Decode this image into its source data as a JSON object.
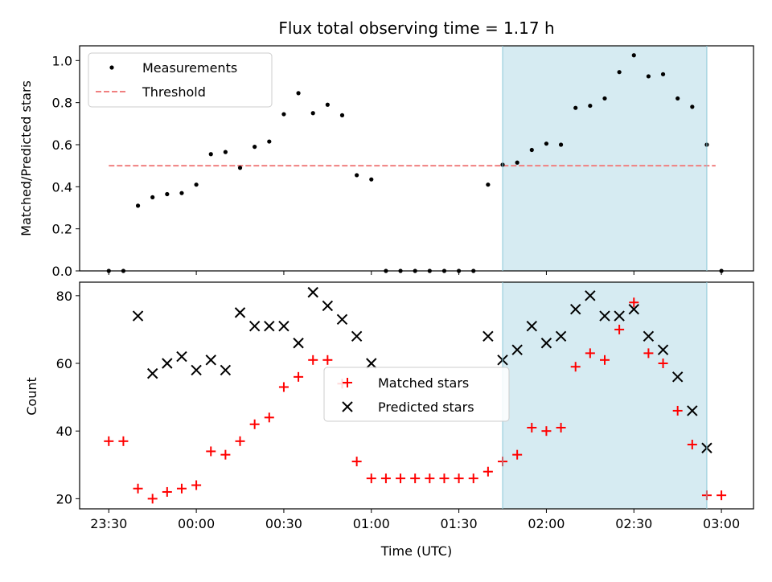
{
  "chart_data": {
    "type": "scatter",
    "title": "Flux total observing time = 1.17 h",
    "xlabel": "Time (UTC)",
    "x_tick_labels": [
      "23:30",
      "00:00",
      "00:30",
      "01:00",
      "01:30",
      "02:00",
      "02:30",
      "03:00"
    ],
    "x_tick_minutes": [
      -30,
      0,
      30,
      60,
      90,
      120,
      150,
      180
    ],
    "xlim_minutes": [
      -40,
      191
    ],
    "highlight_span_minutes": [
      105,
      175
    ],
    "highlight_color": "#add8e6",
    "panels": [
      {
        "name": "ratio",
        "ylabel": "Matched/Predicted stars",
        "ylim": [
          0,
          1.07
        ],
        "y_ticks": [
          0.0,
          0.2,
          0.4,
          0.6,
          0.8,
          1.0
        ],
        "y_tick_labels": [
          "0.0",
          "0.2",
          "0.4",
          "0.6",
          "0.8",
          "1.0"
        ],
        "legend_position": "upper-left",
        "series": [
          {
            "name": "Measurements",
            "marker": "dot",
            "color": "#000000",
            "x": [
              -30,
              -25,
              -20,
              -15,
              -10,
              -5,
              0,
              5,
              10,
              15,
              20,
              25,
              30,
              35,
              40,
              45,
              50,
              55,
              60,
              65,
              70,
              75,
              80,
              85,
              90,
              95,
              100,
              105,
              110,
              115,
              120,
              125,
              130,
              135,
              140,
              145,
              150,
              155,
              160,
              165,
              170,
              175,
              180
            ],
            "y": [
              0,
              0,
              0.31,
              0.35,
              0.365,
              0.37,
              0.41,
              0.555,
              0.565,
              0.49,
              0.59,
              0.615,
              0.745,
              0.845,
              0.75,
              0.79,
              0.74,
              0.455,
              0.435,
              0,
              0,
              0,
              0,
              0,
              0,
              0,
              0.41,
              0.505,
              0.515,
              0.575,
              0.605,
              0.6,
              0.775,
              0.785,
              0.82,
              0.945,
              1.025,
              0.925,
              0.935,
              0.82,
              0.78,
              0.6,
              0
            ]
          },
          {
            "name": "Threshold",
            "style": "dashed-line",
            "color": "#f08080",
            "x": [
              -30,
              178
            ],
            "y": [
              0.5,
              0.5
            ]
          }
        ]
      },
      {
        "name": "counts",
        "ylabel": "Count",
        "ylim": [
          17,
          84
        ],
        "y_ticks": [
          20,
          40,
          60,
          80
        ],
        "y_tick_labels": [
          "20",
          "40",
          "60",
          "80"
        ],
        "legend_position": "center",
        "series": [
          {
            "name": "Matched stars",
            "marker": "plus",
            "color": "#ff0000",
            "x": [
              -30,
              -25,
              -20,
              -15,
              -10,
              -5,
              0,
              5,
              10,
              15,
              20,
              25,
              30,
              35,
              40,
              45,
              50,
              55,
              60,
              65,
              70,
              75,
              80,
              85,
              90,
              95,
              100,
              105,
              110,
              115,
              120,
              125,
              130,
              135,
              140,
              145,
              150,
              155,
              160,
              165,
              170,
              175,
              180
            ],
            "y": [
              37,
              37,
              23,
              20,
              22,
              23,
              24,
              34,
              33,
              37,
              42,
              44,
              53,
              56,
              61,
              61,
              54,
              31,
              26,
              26,
              26,
              26,
              26,
              26,
              26,
              26,
              28,
              31,
              33,
              41,
              40,
              41,
              59,
              63,
              61,
              70,
              78,
              63,
              60,
              46,
              36,
              21,
              21
            ]
          },
          {
            "name": "Predicted stars",
            "marker": "cross",
            "color": "#000000",
            "x": [
              -20,
              -15,
              -10,
              -5,
              0,
              5,
              10,
              15,
              20,
              25,
              30,
              35,
              40,
              45,
              50,
              55,
              60,
              100,
              105,
              110,
              115,
              120,
              125,
              130,
              135,
              140,
              145,
              150,
              155,
              160,
              165,
              170,
              175
            ],
            "y": [
              74,
              57,
              60,
              62,
              58,
              61,
              58,
              75,
              71,
              71,
              71,
              66,
              81,
              77,
              73,
              68,
              60,
              68,
              61,
              64,
              71,
              66,
              68,
              76,
              80,
              74,
              74,
              76,
              68,
              64,
              56,
              46,
              35
            ]
          }
        ]
      }
    ]
  }
}
